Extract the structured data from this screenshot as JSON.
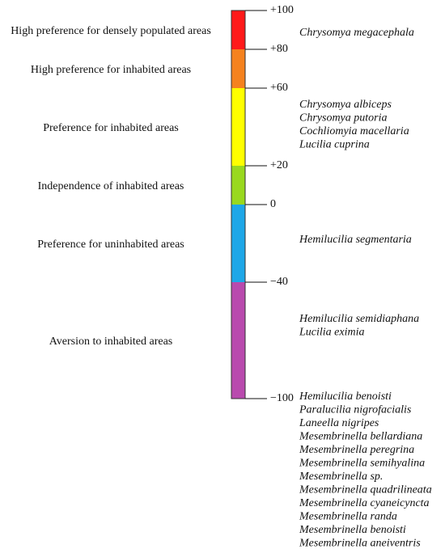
{
  "scale": {
    "ticks": [
      {
        "value": 100,
        "label": "+100"
      },
      {
        "value": 80,
        "label": "+80"
      },
      {
        "value": 60,
        "label": "+60"
      },
      {
        "value": 20,
        "label": "+20"
      },
      {
        "value": 0,
        "label": "0"
      },
      {
        "value": -40,
        "label": "−40"
      },
      {
        "value": -100,
        "label": "−100"
      }
    ],
    "segments": [
      {
        "from": 100,
        "to": 80,
        "color": "#ff1a1a",
        "label": "High preference for densely populated areas"
      },
      {
        "from": 80,
        "to": 60,
        "color": "#f5821f",
        "label": "High preference for inhabited areas"
      },
      {
        "from": 60,
        "to": 20,
        "color": "#ffff00",
        "label": "Preference for inhabited areas"
      },
      {
        "from": 20,
        "to": 0,
        "color": "#99d91f",
        "label": "Independence of inhabited areas"
      },
      {
        "from": 0,
        "to": -40,
        "color": "#1ea7e8",
        "label": "Preference for uninhabited areas"
      },
      {
        "from": -40,
        "to": -100,
        "color": "#b94aae",
        "label": "Aversion to inhabited areas"
      }
    ]
  },
  "species_groups": [
    [
      "Chrysomya megacephala"
    ],
    [
      "Chrysomya albiceps",
      "Chrysomya putoria",
      "Cochliomyia macellaria",
      "Lucilia cuprina"
    ],
    [
      "Hemilucilia segmentaria"
    ],
    [
      "Hemilucilia semidiaphana",
      "Lucilia eximia"
    ],
    [
      "Hemilucilia benoisti",
      "Paralucilia nigrofacialis",
      "Laneella nigripes",
      "Mesembrinella bellardiana",
      "Mesembrinella peregrina",
      "Mesembrinella semihyalina",
      "Mesembrinella sp.",
      "Mesembrinella quadrilineata",
      "Mesembrinella cyaneicyncta",
      "Mesembrinella randa",
      "Mesembrinella benoisti",
      "Mesembrinella aneiventris"
    ]
  ]
}
